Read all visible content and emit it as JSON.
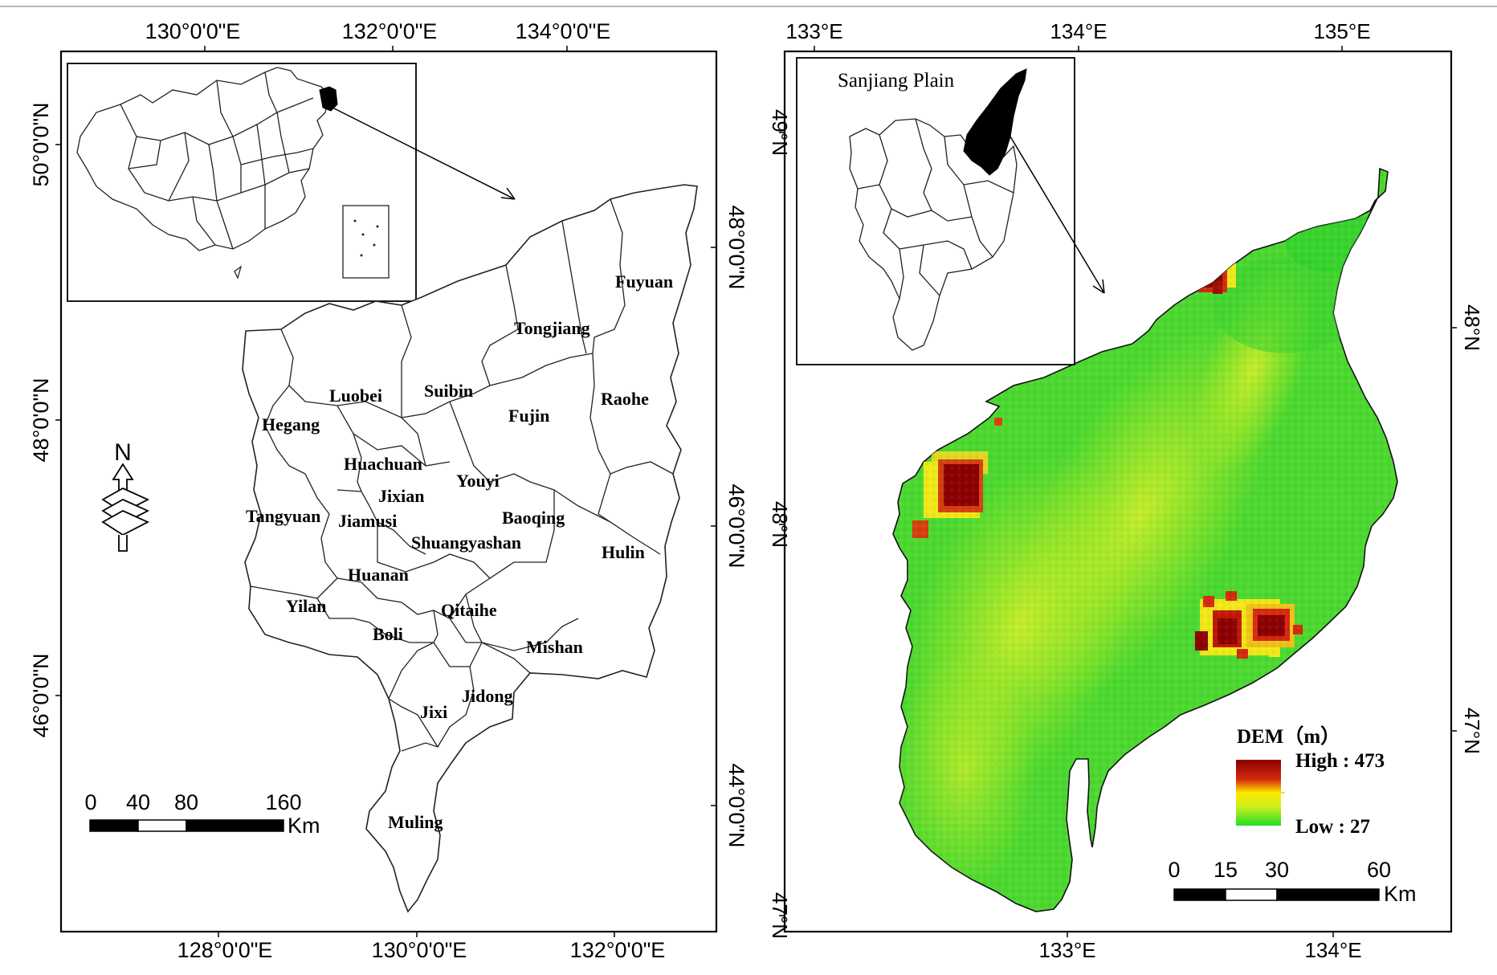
{
  "left_map": {
    "top_ticks": [
      "130°0'0\"E",
      "132°0'0\"E",
      "134°0'0\"E"
    ],
    "bottom_ticks": [
      "128°0'0\"E",
      "130°0'0\"E",
      "132°0'0\"E"
    ],
    "left_ticks": [
      "50°0'0\"N",
      "48°0'0\"N",
      "46°0'0\"N"
    ],
    "right_ticks": [
      "48°0'0\"N",
      "46°0'0\"N",
      "44°0'0\"N"
    ],
    "counties": [
      "Fuyuan",
      "Tongjiang",
      "Luobei",
      "Suibin",
      "Raohe",
      "Fujin",
      "Hegang",
      "Huachuan",
      "Youyi",
      "Jixian",
      "Tangyuan",
      "Jiamusi",
      "Baoqing",
      "Shuangyashan",
      "Hulin",
      "Huanan",
      "Yilan",
      "Qitaihe",
      "Boli",
      "Mishan",
      "Jidong",
      "Jixi",
      "Muling"
    ],
    "north_label": "N",
    "scale_bar": {
      "labels": [
        "0",
        "40",
        "80",
        "160"
      ],
      "unit": "Km"
    }
  },
  "right_map": {
    "top_ticks": [
      "133°E",
      "134°E",
      "135°E"
    ],
    "bottom_ticks": [
      "133°E",
      "134°E"
    ],
    "left_ticks": [
      "49°N",
      "48°N",
      "47°N"
    ],
    "right_ticks": [
      "48°N",
      "47°N"
    ],
    "inset_label": "Sanjiang Plain",
    "legend": {
      "title": "DEM（m）",
      "high_label": "High : 473",
      "low_label": "Low : 27",
      "high_value": 473,
      "low_value": 27,
      "colors": [
        "#8b0000",
        "#d42a10",
        "#ffe800",
        "#c8ef20",
        "#22dd22"
      ]
    },
    "scale_bar": {
      "labels": [
        "0",
        "15",
        "30",
        "60"
      ],
      "unit": "Km"
    }
  }
}
